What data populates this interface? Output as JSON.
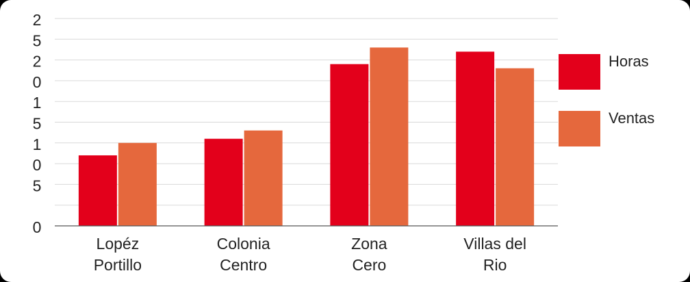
{
  "chart_data": {
    "type": "bar",
    "categories": [
      [
        "Lopéz",
        "Portillo"
      ],
      [
        "Colonia",
        "Centro"
      ],
      [
        "Zona",
        "Cero"
      ],
      [
        "Villas del",
        "Rio"
      ]
    ],
    "series": [
      {
        "name": "Horas",
        "values": [
          8.5,
          10.5,
          19.5,
          21.0
        ],
        "color": "#E3001B"
      },
      {
        "name": "Ventas",
        "values": [
          10.0,
          11.5,
          21.5,
          19.0
        ],
        "color": "#E5683D"
      }
    ],
    "ylim": [
      0,
      25
    ],
    "y_tick_labels": [
      "2",
      "5",
      "2",
      "0",
      "1",
      "5",
      "1",
      "0",
      "5",
      "",
      "0"
    ],
    "title": "",
    "xlabel": "",
    "ylabel": "",
    "grid": true,
    "legend_position": "right"
  }
}
